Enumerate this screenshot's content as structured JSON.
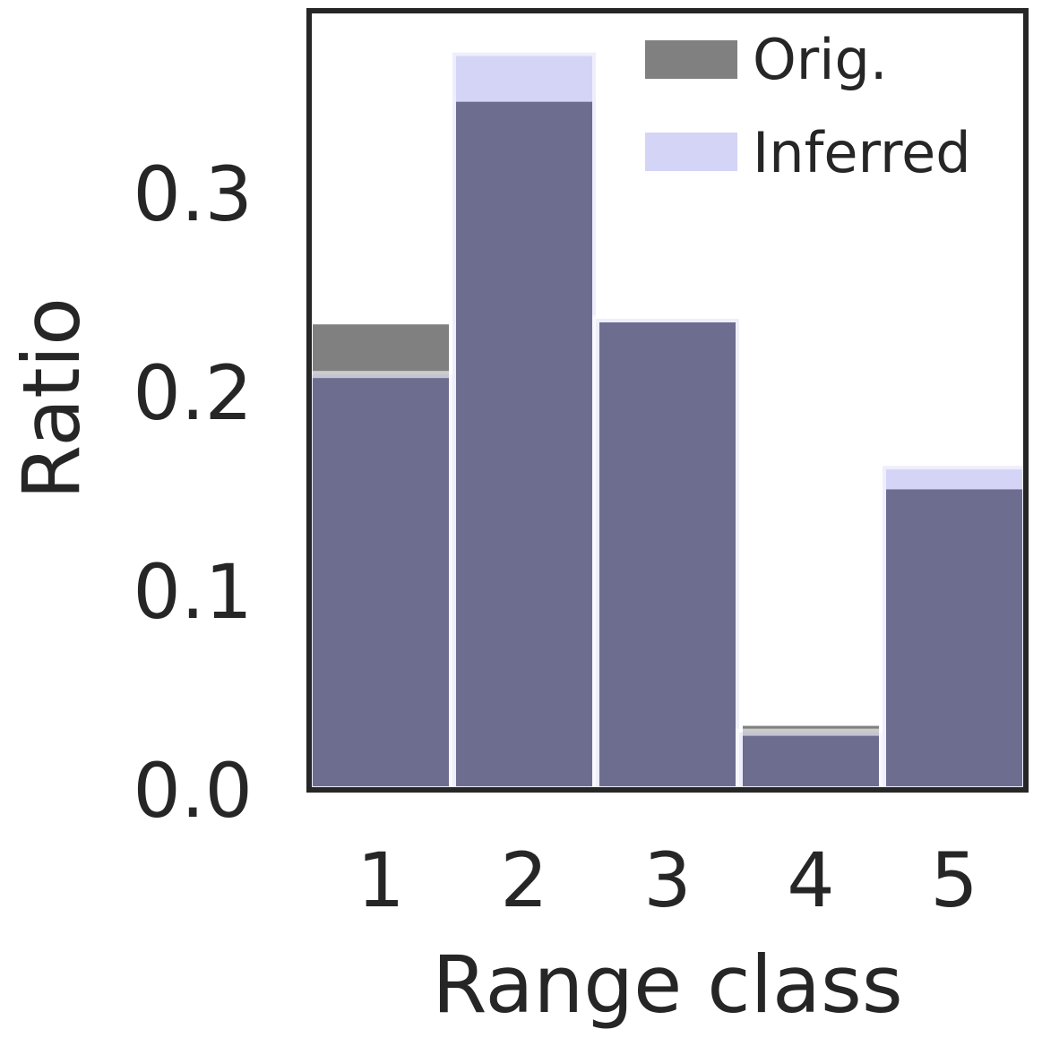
{
  "chart_data": {
    "type": "bar",
    "title": "",
    "xlabel": "Range class",
    "ylabel": "Ratio",
    "categories": [
      "1",
      "2",
      "3",
      "4",
      "5"
    ],
    "series": [
      {
        "name": "Orig.",
        "values": [
          0.236,
          0.348,
          0.237,
          0.034,
          0.153
        ],
        "color": "#808080"
      },
      {
        "name": "Inferred",
        "values": [
          0.209,
          0.371,
          0.237,
          0.029,
          0.163
        ],
        "color": "#1818d5"
      }
    ],
    "yticks": [
      "0.0",
      "0.1",
      "0.2",
      "0.3"
    ],
    "ylim": [
      0,
      0.392
    ],
    "grid": false,
    "legend": "top-right",
    "overlap_color": "#6c6d90"
  }
}
